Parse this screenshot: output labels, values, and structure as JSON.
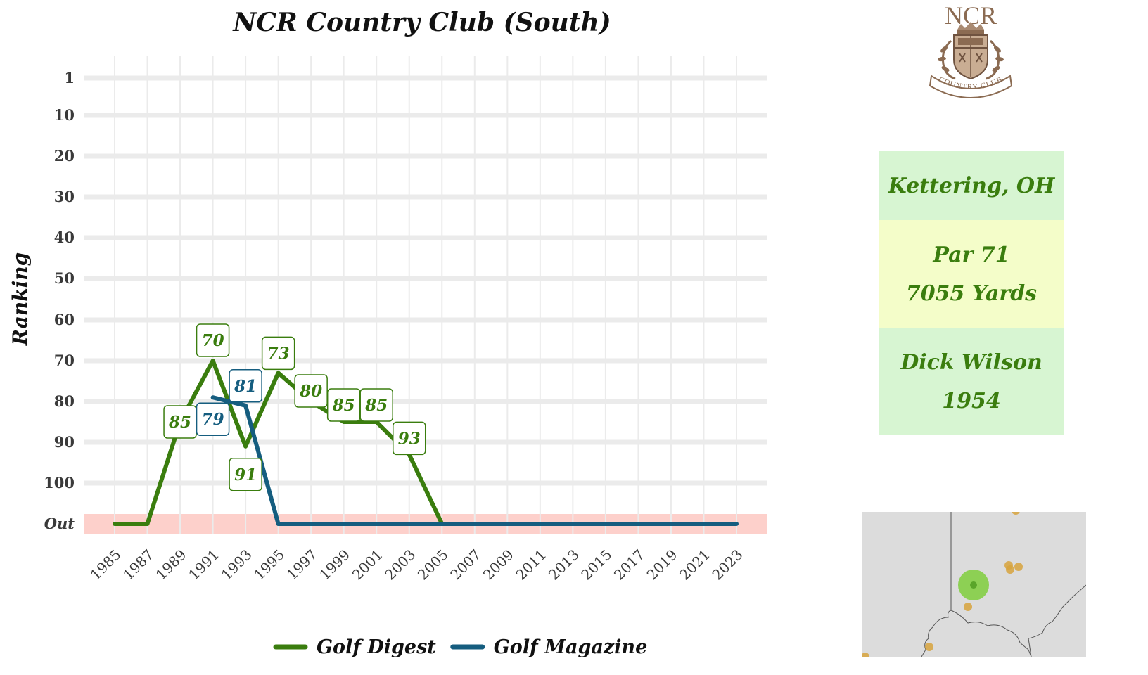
{
  "page": {
    "title": "NCR Country Club (South)"
  },
  "logo": {
    "wordmark": "NCR",
    "ribbon_text": "COUNTRY CLUB",
    "color": "#8b6b52"
  },
  "info": {
    "location": "Kettering, OH",
    "par": "Par 71",
    "yards": "7055 Yards",
    "architect": "Dick Wilson",
    "year": "1954",
    "text_color": "#3a7d0e",
    "box_colors": [
      "#d7f5d2",
      "#f4fdc9",
      "#d7f5d2"
    ]
  },
  "map": {
    "background": "#dcdcdc",
    "highlight_color": "#7fce3c",
    "other_color": "#d7a33d"
  },
  "chart_data": {
    "type": "line",
    "title": "NCR Country Club (South)",
    "xlabel": "",
    "ylabel": "Ranking",
    "x_ticks": [
      "1985",
      "1987",
      "1989",
      "1991",
      "1993",
      "1995",
      "1997",
      "1999",
      "2001",
      "2003",
      "2005",
      "2007",
      "2009",
      "2011",
      "2013",
      "2015",
      "2017",
      "2019",
      "2021",
      "2023"
    ],
    "y_ticks": [
      "1",
      "10",
      "20",
      "30",
      "40",
      "50",
      "60",
      "70",
      "80",
      "90",
      "100",
      "Out"
    ],
    "y_reversed": true,
    "out_band_color": "#fdd0cb",
    "grid": true,
    "legend_position": "bottom",
    "series": [
      {
        "name": "Golf Digest",
        "color": "#3a7d0e",
        "points": [
          {
            "x": 1985,
            "y": "Out"
          },
          {
            "x": 1987,
            "y": "Out"
          },
          {
            "x": 1989,
            "y": 85
          },
          {
            "x": 1991,
            "y": 70
          },
          {
            "x": 1993,
            "y": 91
          },
          {
            "x": 1995,
            "y": 73
          },
          {
            "x": 1997,
            "y": 80
          },
          {
            "x": 1999,
            "y": 85
          },
          {
            "x": 2001,
            "y": 85
          },
          {
            "x": 2003,
            "y": 93
          },
          {
            "x": 2005,
            "y": "Out"
          }
        ],
        "labels": [
          {
            "x": 1989,
            "text": "85"
          },
          {
            "x": 1991,
            "text": "70"
          },
          {
            "x": 1993,
            "text": "91"
          },
          {
            "x": 1995,
            "text": "73"
          },
          {
            "x": 1997,
            "text": "80"
          },
          {
            "x": 1999,
            "text": "85"
          },
          {
            "x": 2001,
            "text": "85"
          },
          {
            "x": 2003,
            "text": "93"
          }
        ]
      },
      {
        "name": "Golf Magazine",
        "color": "#155d7f",
        "points": [
          {
            "x": 1991,
            "y": 79
          },
          {
            "x": 1993,
            "y": 81
          },
          {
            "x": 1995,
            "y": "Out"
          },
          {
            "x": 2023,
            "y": "Out"
          }
        ],
        "labels": [
          {
            "x": 1991,
            "text": "79"
          },
          {
            "x": 1993,
            "text": "81"
          }
        ]
      }
    ]
  }
}
